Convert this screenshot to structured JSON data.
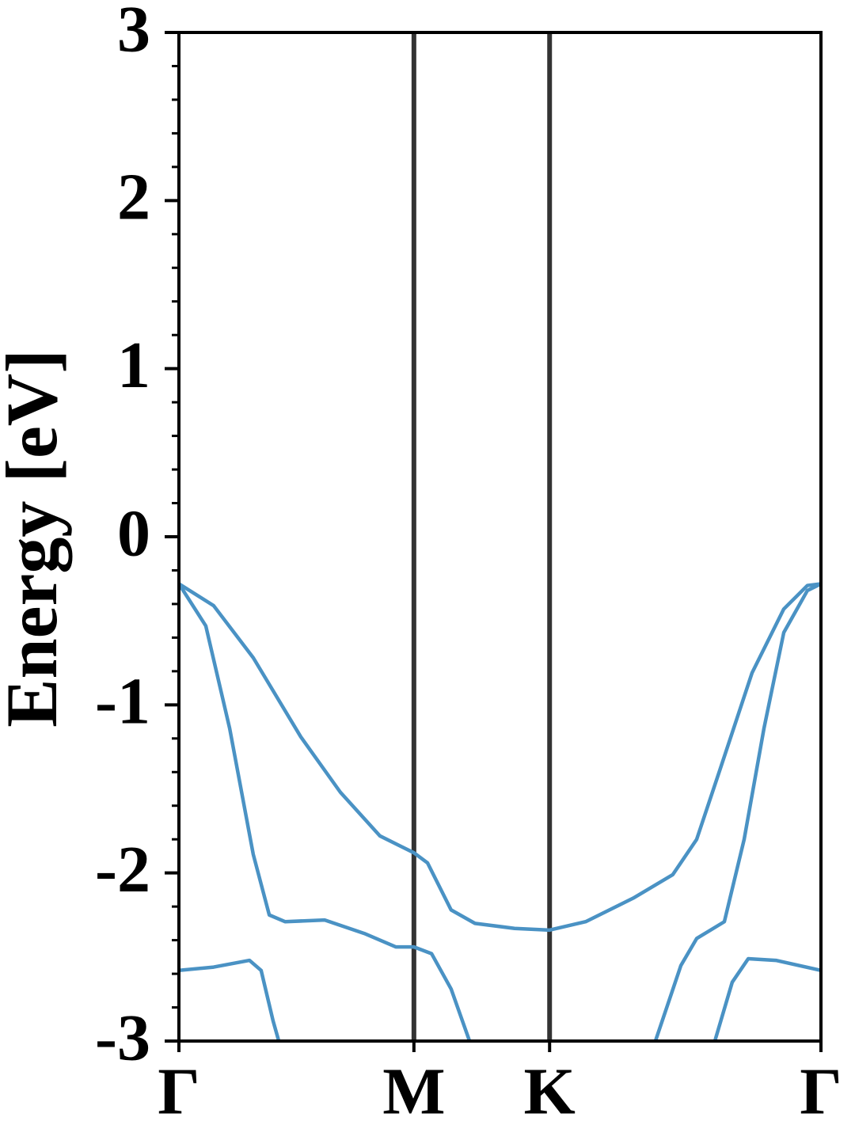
{
  "chart_data": {
    "type": "line",
    "ylabel": "Energy [eV]",
    "xlim": [
      0,
      2.366
    ],
    "xticks": [
      {
        "value": 0,
        "label": "Γ"
      },
      {
        "value": 0.866,
        "label": "M"
      },
      {
        "value": 1.366,
        "label": "K"
      },
      {
        "value": 2.366,
        "label": "Γ"
      }
    ],
    "ylim": [
      -3,
      3
    ],
    "yticks": [
      -3,
      -2,
      -1,
      0,
      1,
      2,
      3
    ],
    "yminorticks": [
      -2.8,
      -2.6,
      -2.4,
      -2.2,
      -1.8,
      -1.6,
      -1.4,
      -1.2,
      -0.8,
      -0.6,
      -0.4,
      -0.2,
      0.2,
      0.4,
      0.6,
      0.8,
      1.2,
      1.4,
      1.6,
      1.8,
      2.2,
      2.4,
      2.6,
      2.8
    ],
    "vlines_color": "#333333",
    "series": [
      {
        "color": "#4a92c4",
        "x": [
          0,
          0.128,
          0.274,
          0.449,
          0.595,
          0.741,
          0.866,
          0.916,
          1.003,
          1.091,
          1.237,
          1.366,
          1.499,
          1.674,
          1.82,
          1.908,
          1.995,
          2.112,
          2.229,
          2.316,
          2.366
        ],
        "values": [
          -0.28,
          -0.41,
          -0.72,
          -1.19,
          -1.52,
          -1.78,
          -1.88,
          -1.94,
          -2.22,
          -2.3,
          -2.33,
          -2.34,
          -2.29,
          -2.15,
          -2.01,
          -1.8,
          -1.38,
          -0.81,
          -0.43,
          -0.29,
          -0.28
        ]
      },
      {
        "color": "#4a92c4",
        "x": [
          0,
          0.099,
          0.187,
          0.274,
          0.333,
          0.391,
          0.537,
          0.683,
          0.799,
          0.866,
          0.931,
          1.003,
          1.071,
          null,
          1.756,
          1.85,
          1.908,
          2.01,
          2.083,
          2.156,
          2.229,
          2.316,
          2.366
        ],
        "values": [
          -0.28,
          -0.53,
          -1.14,
          -1.89,
          -2.25,
          -2.29,
          -2.28,
          -2.36,
          -2.44,
          -2.44,
          -2.48,
          -2.69,
          -3,
          null,
          -3,
          -2.55,
          -2.39,
          -2.29,
          -1.8,
          -1.14,
          -0.57,
          -0.32,
          -0.28
        ]
      },
      {
        "color": "#4a92c4",
        "x": [
          0,
          0.128,
          0.26,
          0.303,
          0.347,
          0.368,
          null,
          1.975,
          2.039,
          2.098,
          2.2,
          2.366
        ],
        "values": [
          -2.58,
          -2.56,
          -2.52,
          -2.58,
          -2.88,
          -3,
          null,
          -3,
          -2.65,
          -2.51,
          -2.52,
          -2.58
        ]
      }
    ]
  }
}
